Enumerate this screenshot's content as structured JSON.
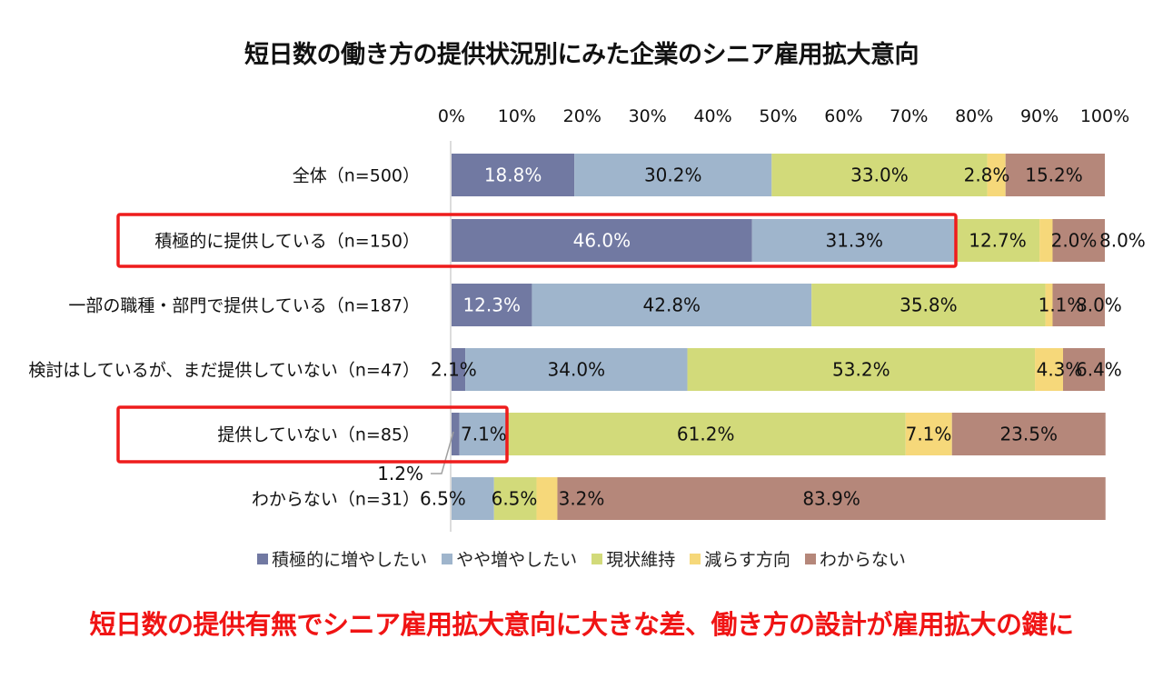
{
  "title": "短日数の働き方の提供状況別にみた企業のシニア雇用拡大意向",
  "footer": "短日数の提供有無でシニア雇用拡大意向に大きな差、働き方の設計が雇用拡大の鍵に",
  "colors": {
    "series": [
      "#7179a2",
      "#9fb5cc",
      "#d2da7a",
      "#f6d87a",
      "#b5877a"
    ],
    "highlight": "#ee1c1c",
    "footer": "#f01414"
  },
  "chart_data": {
    "type": "bar",
    "orientation": "horizontal-stacked-100",
    "title": "短日数の働き方の提供状況別にみた企業のシニア雇用拡大意向",
    "xlim": [
      0,
      100
    ],
    "x_ticks": [
      "0%",
      "10%",
      "20%",
      "30%",
      "40%",
      "50%",
      "60%",
      "70%",
      "80%",
      "90%",
      "100%"
    ],
    "legend_position": "bottom",
    "categories": [
      "全体（n=500）",
      "積極的に提供している（n=150）",
      "一部の職種・部門で提供している（n=187）",
      "検討はしているが、まだ提供していない（n=47）",
      "提供していない（n=85）",
      "わからない（n=31）"
    ],
    "highlighted_categories": [
      "積極的に提供している（n=150）",
      "提供していない（n=85）"
    ],
    "series": [
      {
        "name": "積極的に増やしたい",
        "values": [
          18.8,
          46.0,
          12.3,
          2.1,
          1.2,
          0.0
        ],
        "labels": [
          "18.8%",
          "46.0%",
          "12.3%",
          "2.1%",
          "1.2%",
          ""
        ]
      },
      {
        "name": "やや増やしたい",
        "values": [
          30.2,
          31.3,
          42.8,
          34.0,
          7.1,
          6.5
        ],
        "labels": [
          "30.2%",
          "31.3%",
          "42.8%",
          "34.0%",
          "7.1%",
          "6.5%"
        ]
      },
      {
        "name": "現状維持",
        "values": [
          33.0,
          12.7,
          35.8,
          53.2,
          61.2,
          6.5
        ],
        "labels": [
          "33.0%",
          "12.7%",
          "35.8%",
          "53.2%",
          "61.2%",
          "6.5%"
        ]
      },
      {
        "name": "減らす方向",
        "values": [
          2.8,
          2.0,
          1.1,
          4.3,
          7.1,
          3.2
        ],
        "labels": [
          "2.8%",
          "2.0%",
          "1.1%",
          "4.3%",
          "7.1%",
          "3.2%"
        ]
      },
      {
        "name": "わからない",
        "values": [
          15.2,
          8.0,
          8.0,
          6.4,
          23.5,
          83.9
        ],
        "labels": [
          "15.2%",
          "8.0%",
          "8.0%",
          "6.4%",
          "23.5%",
          "83.9%"
        ]
      }
    ]
  }
}
